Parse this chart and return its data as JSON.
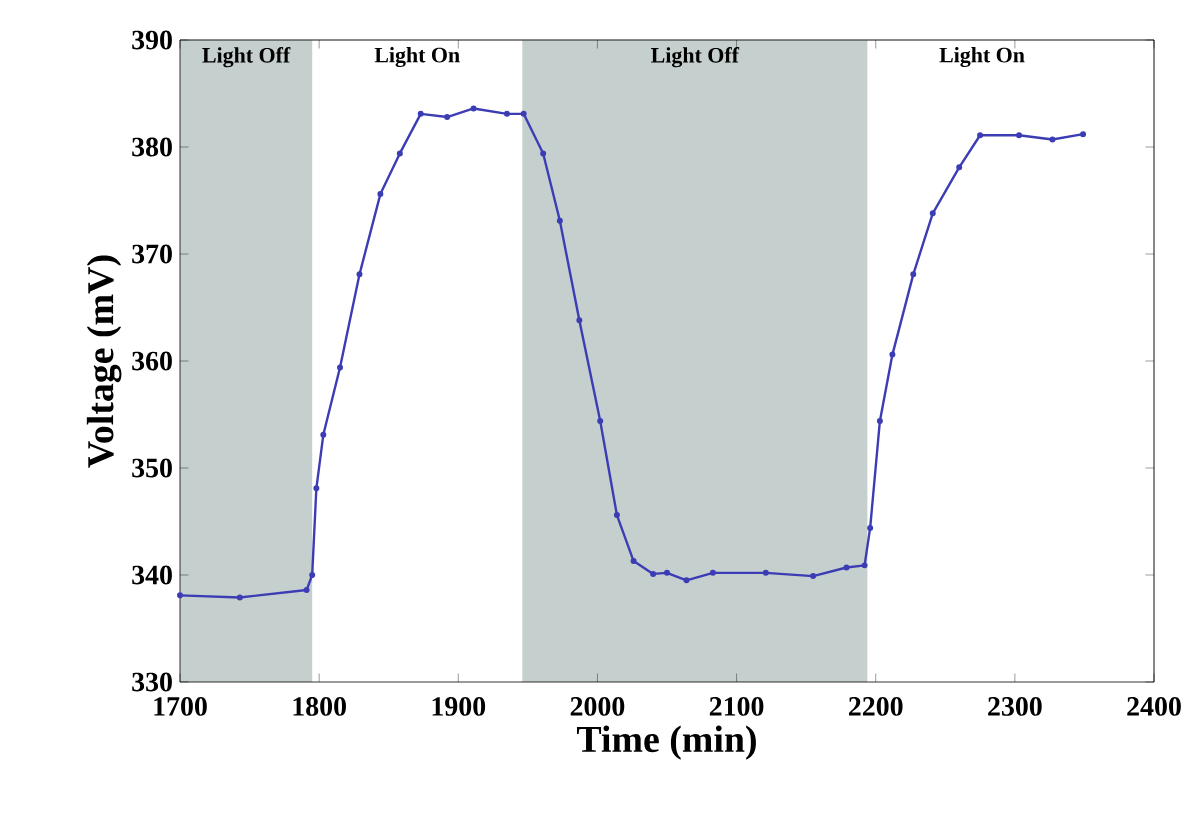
{
  "chart_data": {
    "type": "line",
    "xlabel": "Time (min)",
    "ylabel": "Voltage (mV)",
    "xlim": [
      1700,
      2400
    ],
    "ylim": [
      330,
      390
    ],
    "xticks": [
      1700,
      1800,
      1900,
      2000,
      2100,
      2200,
      2300,
      2400
    ],
    "yticks": [
      330,
      340,
      350,
      360,
      370,
      380,
      390
    ],
    "grid": false,
    "marker": "circle",
    "line_style": "solid",
    "bands": [
      {
        "axis": "x",
        "from": 1700,
        "to": 1795,
        "label": "Light Off",
        "color": "#c5d0ce"
      },
      {
        "axis": "x",
        "from": 1946,
        "to": 2194,
        "label": "Light Off",
        "color": "#c5d0ce"
      }
    ],
    "annotations": [
      "Light On",
      "Light On"
    ],
    "series": [
      {
        "color": "#3c3cb4",
        "x": [
          1700,
          1743,
          1791,
          1795,
          1798,
          1803,
          1815,
          1829,
          1844,
          1858,
          1873,
          1892,
          1911,
          1935,
          1947,
          1961,
          1973,
          1987,
          2002,
          2014,
          2026,
          2040,
          2050,
          2064,
          2083,
          2121,
          2155,
          2179,
          2192,
          2196,
          2203,
          2212,
          2227,
          2241,
          2260,
          2275,
          2303,
          2327,
          2349
        ],
        "values": [
          338.1,
          337.9,
          338.6,
          340.0,
          348.1,
          353.1,
          359.4,
          368.1,
          375.6,
          379.4,
          383.1,
          382.8,
          383.6,
          383.1,
          383.1,
          379.4,
          373.1,
          363.8,
          354.4,
          345.6,
          341.3,
          340.1,
          340.2,
          339.5,
          340.2,
          340.2,
          339.9,
          340.7,
          340.9,
          344.4,
          354.4,
          360.6,
          368.1,
          373.8,
          378.1,
          381.1,
          381.1,
          380.7,
          381.2
        ]
      }
    ]
  }
}
